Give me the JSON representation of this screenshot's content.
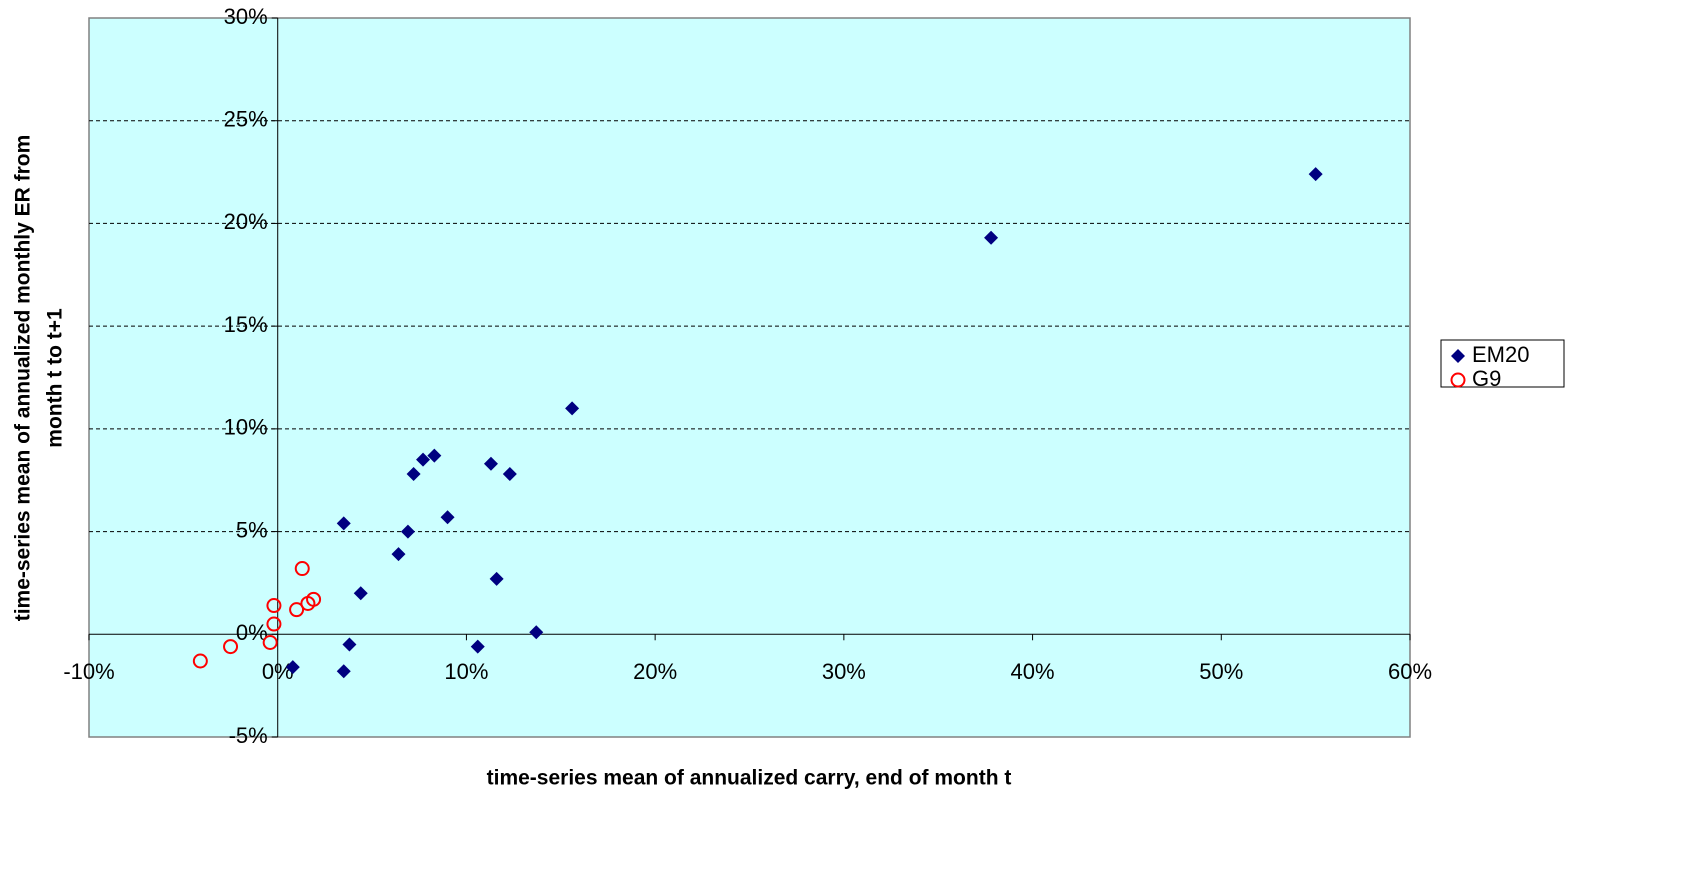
{
  "chart_data": {
    "type": "scatter",
    "xlabel": "time-series mean of annualized carry, end of month t",
    "ylabel": [
      "time-series mean of annualized monthly ER from",
      "month t to t+1"
    ],
    "xlim": [
      -10,
      60
    ],
    "xticks": [
      {
        "value": -10,
        "label": "-10%"
      },
      {
        "value": 0,
        "label": "0%"
      },
      {
        "value": 10,
        "label": "10%"
      },
      {
        "value": 20,
        "label": "20%"
      },
      {
        "value": 30,
        "label": "30%"
      },
      {
        "value": 40,
        "label": "40%"
      },
      {
        "value": 50,
        "label": "50%"
      },
      {
        "value": 60,
        "label": "60%"
      }
    ],
    "ylim": [
      -5,
      30
    ],
    "yticks": [
      {
        "value": -5,
        "label": "-5%"
      },
      {
        "value": 0,
        "label": "0%"
      },
      {
        "value": 5,
        "label": "5%"
      },
      {
        "value": 10,
        "label": "10%"
      },
      {
        "value": 15,
        "label": "15%"
      },
      {
        "value": 20,
        "label": "20%"
      },
      {
        "value": 25,
        "label": "25%"
      },
      {
        "value": 30,
        "label": "30%"
      }
    ],
    "grid": true,
    "legend": "right",
    "series": [
      {
        "name": "EM20",
        "color": "#000080",
        "marker": "diamond",
        "x": [
          55.0,
          37.8,
          15.6,
          8.3,
          7.7,
          7.2,
          11.3,
          12.3,
          3.5,
          6.9,
          9.0,
          6.4,
          11.6,
          4.4,
          13.7,
          3.8,
          10.6,
          0.8,
          3.5
        ],
        "values": [
          22.4,
          19.3,
          11.0,
          8.7,
          8.5,
          7.8,
          8.3,
          7.8,
          5.4,
          5.0,
          5.7,
          3.9,
          2.7,
          2.0,
          0.1,
          -0.5,
          -0.6,
          -1.6,
          -1.8
        ]
      },
      {
        "name": "G9",
        "color": "#ff0000",
        "marker": "circle",
        "x": [
          1.3,
          -0.2,
          1.9,
          1.6,
          1.0,
          -0.2,
          -0.4,
          -2.5,
          -4.1
        ],
        "values": [
          3.2,
          1.4,
          1.7,
          1.5,
          1.2,
          0.5,
          -0.4,
          -0.6,
          -1.3
        ]
      }
    ]
  }
}
